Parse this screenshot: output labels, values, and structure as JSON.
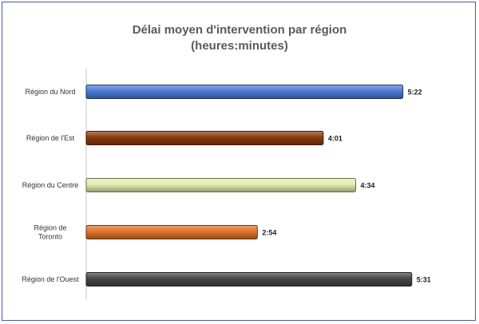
{
  "chart_data": {
    "type": "bar",
    "orientation": "horizontal",
    "title_line1": "Délai moyen d'intervention par région",
    "title_line2": "(heures:minutes)",
    "categories": [
      "Région du Nord",
      "Région de l'Est",
      "Région du Centre",
      "Région de Toronto",
      "Région de l'Ouest"
    ],
    "category_lines": [
      [
        "Région du Nord"
      ],
      [
        "Région de l'Est"
      ],
      [
        "Région du Centre"
      ],
      [
        "Région de",
        "Toronto"
      ],
      [
        "Région de l'Ouest"
      ]
    ],
    "value_labels": [
      "5:22",
      "4:01",
      "4:34",
      "2:54",
      "5:31"
    ],
    "values_minutes": [
      322,
      241,
      274,
      174,
      331
    ],
    "xlim_minutes": [
      0,
      345
    ],
    "grid": false,
    "legend": "none",
    "colors": [
      "#4a7bd8",
      "#8b3a10",
      "#e2ecae",
      "#e1732a",
      "#454545"
    ]
  }
}
